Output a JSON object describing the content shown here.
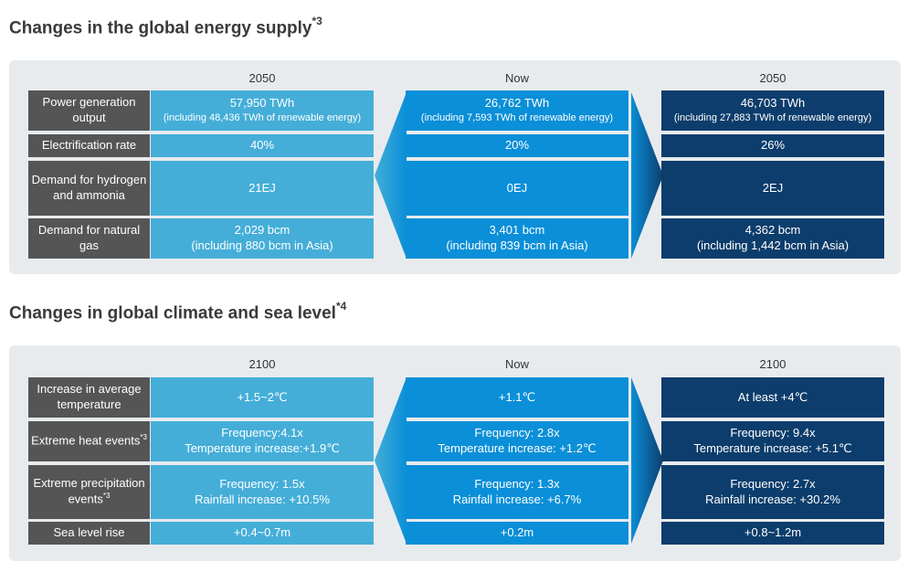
{
  "energy": {
    "title": "Changes in the global energy supply",
    "title_note": "*3",
    "columns": [
      "2050",
      "Now",
      "2050"
    ],
    "rows": [
      {
        "label": "Power generation output",
        "c1": "57,950 TWh",
        "c1_sub": "(including 48,436 TWh of renewable energy)",
        "c2": "26,762 TWh",
        "c2_sub": "(including 7,593 TWh of renewable energy)",
        "c3": "46,703 TWh",
        "c3_sub": "(including 27,883 TWh of renewable energy)"
      },
      {
        "label": "Electrification rate",
        "c1": "40%",
        "c2": "20%",
        "c3": "26%"
      },
      {
        "label": "Demand for hydrogen and ammonia",
        "c1": "21EJ",
        "c2": "0EJ",
        "c3": "2EJ"
      },
      {
        "label": "Demand for natural gas",
        "c1": "2,029 bcm",
        "c1_sub": "(including 880 bcm in Asia)",
        "c2": "3,401 bcm",
        "c2_sub": "(including 839 bcm in Asia)",
        "c3": "4,362 bcm",
        "c3_sub": "(including 1,442 bcm in Asia)"
      }
    ]
  },
  "climate": {
    "title": "Changes in global climate and sea level",
    "title_note": "*4",
    "columns": [
      "2100",
      "Now",
      "2100"
    ],
    "rows": [
      {
        "label": "Increase in average temperature",
        "c1": "+1.5~2℃",
        "c2": "+1.1℃",
        "c3": "At least +4℃"
      },
      {
        "label": "Extreme heat events",
        "label_note": "*3",
        "c1": "Frequency:4.1x",
        "c1_sub": "Temperature increase:+1.9℃",
        "c2": "Frequency: 2.8x",
        "c2_sub": "Temperature increase: +1.2℃",
        "c3": "Frequency: 9.4x",
        "c3_sub": "Temperature increase: +5.1℃"
      },
      {
        "label": "Extreme precipitation events",
        "label_note": "*3",
        "c1": "Frequency: 1.5x",
        "c1_sub": "Rainfall increase: +10.5%",
        "c2": "Frequency: 1.3x",
        "c2_sub": "Rainfall increase: +6.7%",
        "c3": "Frequency: 2.7x",
        "c3_sub": "Rainfall increase: +30.2%"
      },
      {
        "label": "Sea level rise",
        "c1": "+0.4~0.7m",
        "c2": "+0.2m",
        "c3": "+0.8~1.2m"
      }
    ]
  },
  "colors": {
    "panel_bg": "#e8ebee",
    "label_bg": "#555555",
    "col1": "#44aed8",
    "col2": "#0a8fd8",
    "col3": "#0c3d6c"
  }
}
